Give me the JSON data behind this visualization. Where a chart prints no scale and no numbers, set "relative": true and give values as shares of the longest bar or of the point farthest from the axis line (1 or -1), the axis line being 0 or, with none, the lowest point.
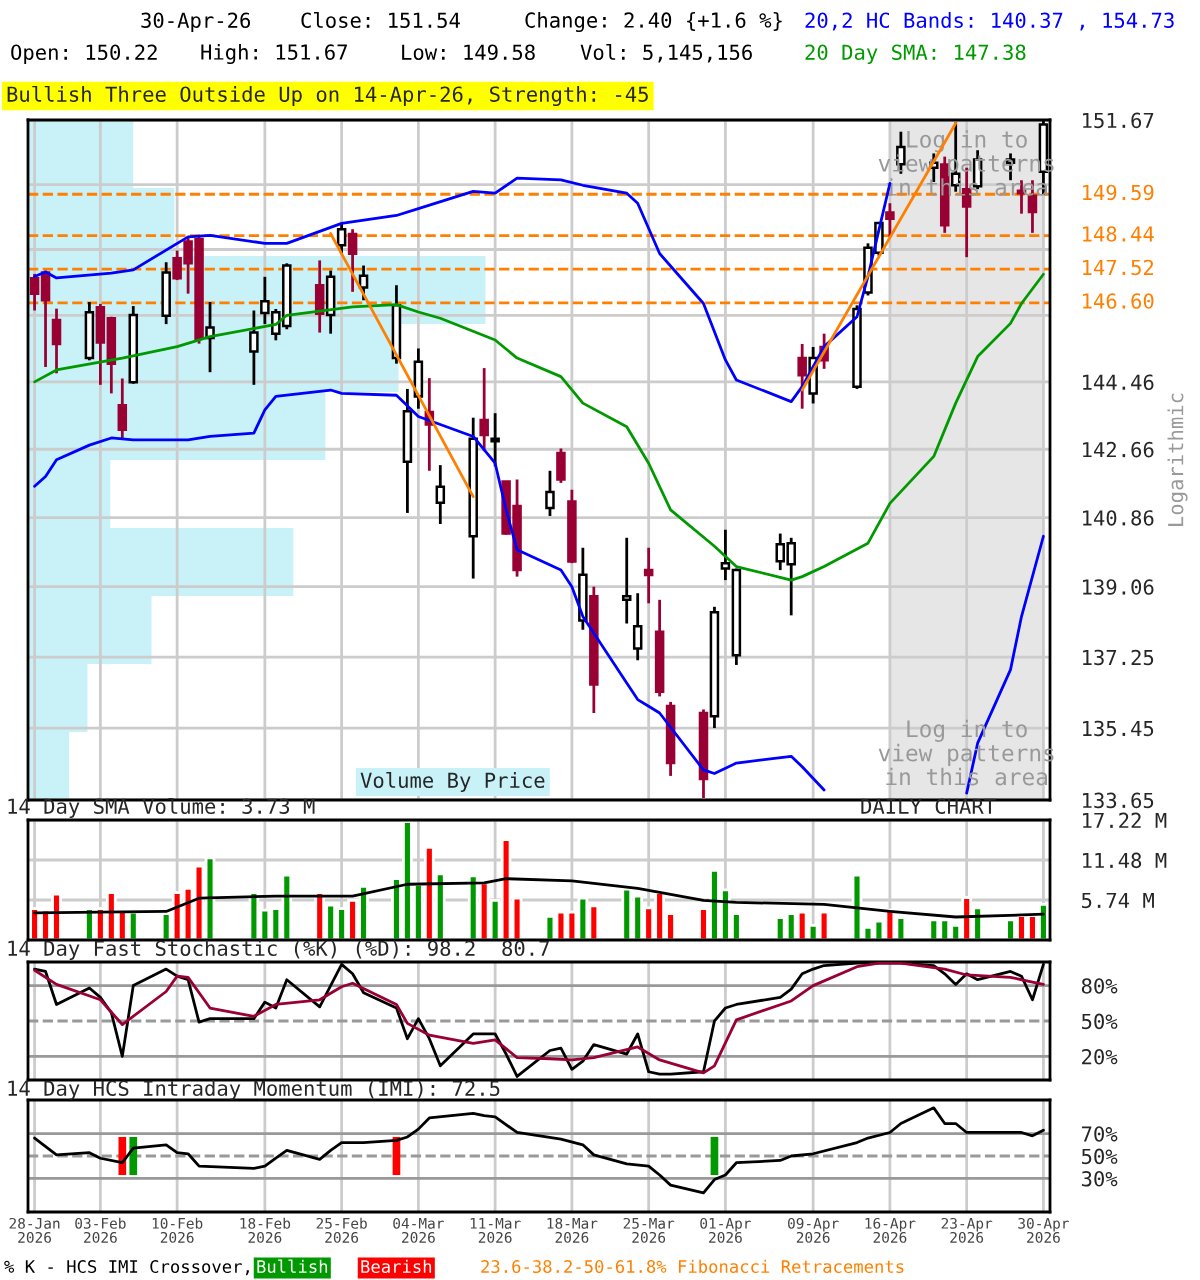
{
  "chart_data": [
    {
      "type": "candlestick",
      "title": "Bullish Three Outside Up on 14-Apr-26, Strength: -45",
      "ylabel": "Logarithmic",
      "annotations": [
        "30-Apr-26",
        "Close: 151.54",
        "Change: 2.40 {+1.6 %}",
        "Open: 150.22",
        "High: 151.67",
        "Low: 149.58",
        "Vol: 5,145,156",
        "20,2 HC Bands: 140.37 , 154.73",
        "20 Day SMA: 147.38",
        "Log in to\nview patterns\nin this area"
      ],
      "x": [
        "2026-01-28",
        "2026-01-29",
        "2026-01-30",
        "2026-02-02",
        "2026-02-03",
        "2026-02-04",
        "2026-02-05",
        "2026-02-06",
        "2026-02-09",
        "2026-02-10",
        "2026-02-11",
        "2026-02-12",
        "2026-02-13",
        "2026-02-17",
        "2026-02-18",
        "2026-02-19",
        "2026-02-20",
        "2026-02-23",
        "2026-02-24",
        "2026-02-25",
        "2026-02-26",
        "2026-02-27",
        "2026-03-02",
        "2026-03-03",
        "2026-03-04",
        "2026-03-05",
        "2026-03-06",
        "2026-03-09",
        "2026-03-10",
        "2026-03-11",
        "2026-03-12",
        "2026-03-13",
        "2026-03-16",
        "2026-03-17",
        "2026-03-18",
        "2026-03-19",
        "2026-03-20",
        "2026-03-23",
        "2026-03-24",
        "2026-03-25",
        "2026-03-26",
        "2026-03-27",
        "2026-03-30",
        "2026-03-31",
        "2026-04-01",
        "2026-04-02",
        "2026-04-06",
        "2026-04-07",
        "2026-04-08",
        "2026-04-09",
        "2026-04-10",
        "2026-04-13",
        "2026-04-14",
        "2026-04-15",
        "2026-04-16",
        "2026-04-17",
        "2026-04-20",
        "2026-04-21",
        "2026-04-22",
        "2026-04-23",
        "2026-04-24",
        "2026-04-27",
        "2026-04-28",
        "2026-04-29",
        "2026-04-30"
      ],
      "ohlc": [
        [
          147.27,
          147.39,
          146.39,
          146.85
        ],
        [
          147.43,
          147.48,
          144.86,
          146.67
        ],
        [
          146.13,
          146.44,
          144.69,
          145.48
        ],
        [
          145.1,
          146.62,
          145.04,
          146.34
        ],
        [
          146.48,
          146.57,
          144.38,
          145.52
        ],
        [
          146.18,
          146.22,
          144.15,
          144.95
        ],
        [
          143.83,
          144.55,
          142.91,
          143.18
        ],
        [
          144.45,
          146.51,
          144.41,
          146.27
        ],
        [
          146.25,
          147.71,
          146.02,
          147.43
        ],
        [
          147.82,
          148.03,
          147.22,
          147.27
        ],
        [
          148.28,
          148.41,
          146.85,
          147.68
        ],
        [
          148.35,
          148.41,
          145.49,
          145.62
        ],
        [
          145.64,
          146.62,
          144.72,
          145.93
        ],
        [
          145.28,
          146.39,
          144.38,
          145.79
        ],
        [
          146.32,
          147.31,
          146.02,
          146.64
        ],
        [
          145.76,
          146.43,
          145.58,
          146.34
        ],
        [
          145.97,
          147.68,
          145.88,
          147.62
        ],
        [
          147.08,
          147.76,
          145.79,
          146.3
        ],
        [
          146.27,
          147.48,
          145.76,
          147.31
        ],
        [
          148.18,
          148.79,
          147.94,
          148.62
        ],
        [
          148.49,
          148.62,
          146.9,
          147.94
        ],
        [
          147.02,
          147.62,
          146.67,
          147.34
        ],
        [
          145.1,
          147.08,
          144.95,
          146.53
        ],
        [
          142.33,
          144.27,
          140.98,
          143.67
        ],
        [
          144.07,
          145.36,
          143.74,
          145.0
        ],
        [
          143.65,
          144.56,
          142.09,
          143.32
        ],
        [
          141.25,
          142.24,
          140.69,
          141.67
        ],
        [
          140.37,
          143.5,
          139.27,
          142.94
        ],
        [
          143.44,
          144.83,
          142.61,
          143.04
        ],
        [
          142.87,
          143.62,
          142.21,
          142.94
        ],
        [
          141.81,
          141.81,
          140.41,
          140.44
        ],
        [
          141.16,
          141.86,
          139.32,
          139.49
        ],
        [
          141.11,
          142.09,
          140.9,
          141.53
        ],
        [
          142.56,
          142.68,
          141.77,
          141.86
        ],
        [
          141.28,
          141.59,
          139.67,
          139.71
        ],
        [
          138.19,
          140.07,
          137.95,
          139.37
        ],
        [
          138.81,
          139.06,
          135.83,
          136.55
        ],
        [
          138.72,
          140.33,
          138.11,
          138.81
        ],
        [
          137.47,
          138.89,
          137.17,
          138.04
        ],
        [
          139.49,
          140.07,
          138.63,
          139.36
        ],
        [
          137.9,
          138.72,
          136.25,
          136.37
        ],
        [
          136.01,
          136.11,
          134.25,
          134.57
        ],
        [
          135.83,
          135.92,
          133.7,
          134.17
        ],
        [
          135.75,
          138.54,
          135.45,
          138.4
        ],
        [
          139.53,
          140.54,
          139.23,
          139.67
        ],
        [
          137.3,
          139.53,
          137.05,
          139.49
        ],
        [
          139.72,
          140.44,
          139.49,
          140.16
        ],
        [
          139.64,
          140.33,
          138.32,
          140.19
        ],
        [
          145.1,
          145.48,
          143.74,
          144.64
        ],
        [
          144.15,
          145.4,
          143.88,
          145.1
        ],
        [
          145.4,
          145.76,
          144.81,
          145.04
        ],
        [
          144.33,
          146.53,
          144.27,
          146.43
        ],
        [
          146.88,
          148.23,
          146.8,
          148.11
        ],
        [
          147.97,
          148.82,
          147.89,
          148.79
        ],
        [
          149.08,
          149.34,
          148.41,
          148.91
        ],
        [
          150.43,
          151.34,
          150.16,
          150.91
        ],
        [
          150.33,
          150.73,
          149.93,
          150.47
        ],
        [
          150.42,
          150.64,
          148.52,
          148.73
        ],
        [
          149.84,
          151.61,
          149.66,
          150.16
        ],
        [
          149.73,
          150.33,
          147.85,
          149.25
        ],
        [
          149.81,
          150.82,
          149.73,
          150.56
        ],
        [
          150.47,
          150.73,
          149.98,
          150.56
        ],
        [
          149.69,
          149.98,
          149.05,
          149.62
        ],
        [
          149.55,
          149.98,
          148.52,
          149.1
        ],
        [
          150.22,
          151.67,
          149.58,
          151.54
        ]
      ],
      "colors": [
        "#990033",
        "#990033",
        "#990033",
        "#ffffff",
        "#990033",
        "#990033",
        "#990033",
        "#ffffff",
        "#ffffff",
        "#990033",
        "#990033",
        "#990033",
        "#ffffff",
        "#ffffff",
        "#ffffff",
        "#ffffff",
        "#ffffff",
        "#990033",
        "#ffffff",
        "#ffffff",
        "#990033",
        "#ffffff",
        "#ffffff",
        "#ffffff",
        "#ffffff",
        "#990033",
        "#ffffff",
        "#ffffff",
        "#990033",
        "#ffffff",
        "#990033",
        "#990033",
        "#ffffff",
        "#990033",
        "#990033",
        "#ffffff",
        "#990033",
        "#ffffff",
        "#ffffff",
        "#990033",
        "#990033",
        "#990033",
        "#990033",
        "#ffffff",
        "#ffffff",
        "#ffffff",
        "#ffffff",
        "#ffffff",
        "#990033",
        "#ffffff",
        "#990033",
        "#ffffff",
        "#ffffff",
        "#ffffff",
        "#990033",
        "#ffffff",
        "#ffffff",
        "#990033",
        "#ffffff",
        "#990033",
        "#ffffff",
        "#ffffff",
        "#990033",
        "#990033",
        "#ffffff"
      ],
      "series": [
        {
          "type": "line",
          "color": "#0000ff",
          "x": [
            "2026-01-28",
            "2026-01-29",
            "2026-01-30",
            "2026-02-04",
            "2026-02-06",
            "2026-02-11",
            "2026-02-13",
            "2026-02-18",
            "2026-02-20",
            "2026-02-25",
            "2026-03-02",
            "2026-03-04",
            "2026-03-09",
            "2026-03-11",
            "2026-03-13",
            "2026-03-17",
            "2026-03-19",
            "2026-03-23",
            "2026-03-24",
            "2026-03-26",
            "2026-03-30",
            "2026-04-01",
            "2026-04-02",
            "2026-04-07",
            "2026-04-08",
            "2026-04-10",
            "2026-04-13",
            "2026-04-14",
            "2026-04-15",
            "2026-04-16"
          ],
          "values": [
            147.32,
            147.44,
            147.28,
            147.41,
            147.5,
            148.41,
            148.45,
            148.23,
            148.23,
            148.78,
            149.0,
            149.19,
            149.67,
            149.62,
            150.04,
            149.99,
            149.84,
            149.62,
            149.34,
            147.95,
            146.58,
            145.05,
            144.51,
            143.93,
            144.33,
            145.41,
            146.22,
            147.32,
            148.6,
            149.89
          ]
        },
        {
          "type": "line",
          "color": "#0000ff",
          "x": [
            "2026-01-28",
            "2026-01-29",
            "2026-01-30",
            "2026-02-02",
            "2026-02-04",
            "2026-02-06",
            "2026-02-11",
            "2026-02-13",
            "2026-02-17",
            "2026-02-18",
            "2026-02-19",
            "2026-02-24",
            "2026-02-25",
            "2026-03-02",
            "2026-03-04",
            "2026-03-09",
            "2026-03-11",
            "2026-03-12",
            "2026-03-13",
            "2026-03-17",
            "2026-03-18",
            "2026-03-19",
            "2026-03-23",
            "2026-03-24",
            "2026-03-25",
            "2026-03-26",
            "2026-03-30",
            "2026-03-31",
            "2026-04-02",
            "2026-04-07",
            "2026-04-08",
            "2026-04-10",
            "2026-04-17",
            "2026-04-23",
            "2026-04-24",
            "2026-04-27",
            "2026-04-28",
            "2026-04-30"
          ],
          "values": [
            141.68,
            141.94,
            142.38,
            142.77,
            142.96,
            142.91,
            142.91,
            143.0,
            143.09,
            143.71,
            144.07,
            144.24,
            144.15,
            144.1,
            143.53,
            143.0,
            142.29,
            141.06,
            140.02,
            139.49,
            139.06,
            138.29,
            136.59,
            136.17,
            136.0,
            135.83,
            134.4,
            134.31,
            134.57,
            134.74,
            134.48,
            133.9,
            null,
            133.82,
            135.07,
            136.93,
            138.29,
            140.37
          ]
        },
        {
          "type": "line",
          "color": "#009900",
          "x": [
            "2026-01-28",
            "2026-01-30",
            "2026-02-05",
            "2026-02-10",
            "2026-02-13",
            "2026-02-19",
            "2026-02-20",
            "2026-02-26",
            "2026-03-02",
            "2026-03-04",
            "2026-03-06",
            "2026-03-11",
            "2026-03-13",
            "2026-03-17",
            "2026-03-19",
            "2026-03-23",
            "2026-03-25",
            "2026-03-27",
            "2026-03-31",
            "2026-04-02",
            "2026-04-07",
            "2026-04-08",
            "2026-04-10",
            "2026-04-14",
            "2026-04-16",
            "2026-04-20",
            "2026-04-22",
            "2026-04-24",
            "2026-04-27",
            "2026-04-28",
            "2026-04-30"
          ],
          "values": [
            144.46,
            144.78,
            145.1,
            145.41,
            145.68,
            146.01,
            146.26,
            146.49,
            146.55,
            146.35,
            146.18,
            145.59,
            145.1,
            144.6,
            143.89,
            143.26,
            142.29,
            141.06,
            140.11,
            139.58,
            139.23,
            139.32,
            139.58,
            140.19,
            141.23,
            142.47,
            143.89,
            145.14,
            146.04,
            146.58,
            147.38
          ]
        },
        {
          "type": "line",
          "color": "#ff8000",
          "x": [
            "2026-02-24",
            "2026-03-09"
          ],
          "values": [
            148.5,
            141.41
          ]
        },
        {
          "type": "line",
          "color": "#ff8000",
          "x": [
            "2026-04-08",
            "2026-04-22"
          ],
          "values": [
            144.24,
            151.58
          ]
        }
      ],
      "log": true,
      "ylim": [
        133.65,
        151.67
      ],
      "yticks": [
        133.65,
        135.45,
        137.25,
        139.06,
        140.86,
        142.66,
        144.46,
        {
          "value": 146.26,
          "label": null
        },
        {
          "value": 148.06,
          "label": null
        },
        {
          "value": 149.86,
          "label": null
        },
        151.67
      ],
      "xlim": [
        "2026-01-28",
        "2026-04-30"
      ],
      "xticks": [
        {
          "value": "2026-01-28",
          "label": null
        },
        {
          "value": "2026-02-03",
          "label": null
        },
        {
          "value": "2026-02-10",
          "label": null
        },
        {
          "value": "2026-02-18",
          "label": null
        },
        {
          "value": "2026-02-25",
          "label": null
        },
        {
          "value": "2026-03-04",
          "label": null
        },
        {
          "value": "2026-03-11",
          "label": null
        },
        {
          "value": "2026-03-18",
          "label": null
        },
        {
          "value": "2026-03-25",
          "label": null
        },
        {
          "value": "2026-04-01",
          "label": null
        },
        {
          "value": "2026-04-09",
          "label": null
        },
        {
          "value": "2026-04-16",
          "label": null
        },
        {
          "value": "2026-04-23",
          "label": null
        },
        {
          "value": "2026-04-30",
          "label": null
        }
      ],
      "tick_labels": "y",
      "grid": true,
      "ref_lines": [
        {
          "axis": "y",
          "value": 149.59,
          "label": "149.59",
          "color": "#ff8000",
          "line_style": "dashed"
        },
        {
          "axis": "y",
          "value": 148.44,
          "label": "148.44",
          "color": "#ff8000",
          "line_style": "dashed"
        },
        {
          "axis": "y",
          "value": 147.52,
          "label": "147.52",
          "color": "#ff8000",
          "line_style": "dashed"
        },
        {
          "axis": "y",
          "value": 146.6,
          "label": "146.60",
          "color": "#ff8000",
          "line_style": "dashed"
        }
      ],
      "bands": [
        {
          "axis": "x",
          "from": "2026-04-16",
          "to": "2026-04-30",
          "label": "Log in to\nview patterns\nin this area",
          "color": "#e6e6e6"
        }
      ]
    },
    {
      "type": "bar",
      "orientation": "horizontal",
      "relative": true,
      "title": "Volume By Price",
      "tick_labels": false,
      "categories": [
        null,
        null,
        null,
        null,
        null,
        null,
        null,
        null,
        null,
        null
      ],
      "values": [
        0.23,
        0.32,
        1,
        0.81,
        0.65,
        0.18,
        0.58,
        0.27,
        0.13,
        0.09
      ],
      "color": "#c8f2f8"
    },
    {
      "type": "bar",
      "title": "14 Day SMA Volume: 3.73 M",
      "annotations": [
        "DAILY CHART"
      ],
      "x": [
        "2026-01-28",
        "2026-01-29",
        "2026-01-30",
        "2026-02-02",
        "2026-02-03",
        "2026-02-04",
        "2026-02-05",
        "2026-02-06",
        "2026-02-09",
        "2026-02-10",
        "2026-02-11",
        "2026-02-12",
        "2026-02-13",
        "2026-02-17",
        "2026-02-18",
        "2026-02-19",
        "2026-02-20",
        "2026-02-23",
        "2026-02-24",
        "2026-02-25",
        "2026-02-26",
        "2026-02-27",
        "2026-03-02",
        "2026-03-03",
        "2026-03-04",
        "2026-03-05",
        "2026-03-06",
        "2026-03-09",
        "2026-03-10",
        "2026-03-11",
        "2026-03-12",
        "2026-03-13",
        "2026-03-16",
        "2026-03-17",
        "2026-03-18",
        "2026-03-19",
        "2026-03-20",
        "2026-03-23",
        "2026-03-24",
        "2026-03-25",
        "2026-03-26",
        "2026-03-27",
        "2026-03-30",
        "2026-03-31",
        "2026-04-01",
        "2026-04-02",
        "2026-04-06",
        "2026-04-07",
        "2026-04-08",
        "2026-04-09",
        "2026-04-10",
        "2026-04-13",
        "2026-04-14",
        "2026-04-15",
        "2026-04-16",
        "2026-04-17",
        "2026-04-20",
        "2026-04-21",
        "2026-04-22",
        "2026-04-23",
        "2026-04-24",
        "2026-04-27",
        "2026-04-28",
        "2026-04-29",
        "2026-04-30"
      ],
      "series": [
        {
          "type": "bar",
          "values": [
            4.5,
            4.3,
            6.6,
            4.5,
            4.5,
            6.8,
            4.1,
            4.0,
            3.8,
            6.8,
            7.4,
            10.6,
            11.8,
            6.8,
            4.3,
            4.5,
            9.3,
            6.8,
            5.0,
            4.5,
            5.7,
            7.7,
            8.8,
            17.0,
            8.0,
            13.3,
            9.5,
            9.2,
            8.2,
            5.7,
            14.4,
            6.0,
            3.4,
            4.0,
            4.0,
            6.0,
            4.9,
            7.3,
            6.3,
            4.6,
            6.8,
            3.8,
            4.5,
            10.0,
            7.2,
            3.8,
            3.2,
            3.8,
            4.0,
            2.1,
            4.0,
            9.3,
            1.8,
            2.7,
            4.3,
            3.2,
            2.9,
            2.9,
            2.1,
            6.1,
            4.6,
            2.9,
            3.5,
            3.5,
            5.1
          ],
          "colors": [
            "#ff0000",
            "#ff0000",
            "#ff0000",
            "#009900",
            "#ff0000",
            "#ff0000",
            "#ff0000",
            "#009900",
            "#009900",
            "#ff0000",
            "#ff0000",
            "#ff0000",
            "#009900",
            "#009900",
            "#009900",
            "#009900",
            "#009900",
            "#ff0000",
            "#009900",
            "#009900",
            "#ff0000",
            "#009900",
            "#009900",
            "#009900",
            "#009900",
            "#ff0000",
            "#009900",
            "#009900",
            "#ff0000",
            "#009900",
            "#ff0000",
            "#ff0000",
            "#009900",
            "#ff0000",
            "#ff0000",
            "#009900",
            "#ff0000",
            "#009900",
            "#009900",
            "#ff0000",
            "#ff0000",
            "#ff0000",
            "#ff0000",
            "#009900",
            "#009900",
            "#009900",
            "#009900",
            "#009900",
            "#ff0000",
            "#009900",
            "#ff0000",
            "#009900",
            "#009900",
            "#009900",
            "#ff0000",
            "#009900",
            "#009900",
            "#009900",
            "#009900",
            "#ff0000",
            "#009900",
            "#009900",
            "#ff0000",
            "#ff0000",
            "#009900"
          ]
        },
        {
          "type": "line",
          "color": "#000000",
          "x": [
            "2026-01-28",
            "2026-02-09",
            "2026-02-12",
            "2026-02-19",
            "2026-02-26",
            "2026-03-03",
            "2026-03-10",
            "2026-03-12",
            "2026-03-18",
            "2026-03-24",
            "2026-03-30",
            "2026-04-02",
            "2026-04-10",
            "2026-04-16",
            "2026-04-22",
            "2026-04-30"
          ],
          "values": [
            3.9,
            4.1,
            6.0,
            6.3,
            6.3,
            8.0,
            8.2,
            8.8,
            8.5,
            7.4,
            5.7,
            5.4,
            5.1,
            4.1,
            3.3,
            3.7
          ]
        }
      ],
      "ylim": [
        0,
        17.22
      ],
      "yticks": [
        {
          "value": 5.74,
          "label": "5.74 M"
        },
        {
          "value": 11.48,
          "label": "11.48 M"
        },
        {
          "value": 17.22,
          "label": "17.22 M"
        }
      ],
      "xlim": [
        "2026-01-28",
        "2026-04-30"
      ],
      "xticks": [
        {
          "value": "2026-01-28",
          "label": null
        },
        {
          "value": "2026-02-03",
          "label": null
        },
        {
          "value": "2026-02-10",
          "label": null
        },
        {
          "value": "2026-02-18",
          "label": null
        },
        {
          "value": "2026-02-25",
          "label": null
        },
        {
          "value": "2026-03-04",
          "label": null
        },
        {
          "value": "2026-03-11",
          "label": null
        },
        {
          "value": "2026-03-18",
          "label": null
        },
        {
          "value": "2026-03-25",
          "label": null
        },
        {
          "value": "2026-04-01",
          "label": null
        },
        {
          "value": "2026-04-09",
          "label": null
        },
        {
          "value": "2026-04-16",
          "label": null
        },
        {
          "value": "2026-04-23",
          "label": null
        },
        {
          "value": "2026-04-30",
          "label": null
        }
      ],
      "tick_labels": "y",
      "grid": true
    },
    {
      "type": "line",
      "title": "14 Day Fast Stochastic (%K) (%D): 98.2  80.7",
      "x": [
        "2026-01-28",
        "2026-01-29",
        "2026-01-30",
        "2026-02-02",
        "2026-02-03",
        "2026-02-04",
        "2026-02-05",
        "2026-02-06",
        "2026-02-09",
        "2026-02-10",
        "2026-02-11",
        "2026-02-12",
        "2026-02-13",
        "2026-02-17",
        "2026-02-18",
        "2026-02-19",
        "2026-02-20",
        "2026-02-23",
        "2026-02-24",
        "2026-02-25",
        "2026-02-26",
        "2026-02-27",
        "2026-03-02",
        "2026-03-03",
        "2026-03-04",
        "2026-03-05",
        "2026-03-06",
        "2026-03-09",
        "2026-03-10",
        "2026-03-11",
        "2026-03-12",
        "2026-03-13",
        "2026-03-16",
        "2026-03-17",
        "2026-03-18",
        "2026-03-19",
        "2026-03-20",
        "2026-03-23",
        "2026-03-24",
        "2026-03-25",
        "2026-03-26",
        "2026-03-27",
        "2026-03-30",
        "2026-03-31",
        "2026-04-01",
        "2026-04-02",
        "2026-04-06",
        "2026-04-07",
        "2026-04-08",
        "2026-04-09",
        "2026-04-10",
        "2026-04-13",
        "2026-04-14",
        "2026-04-15",
        "2026-04-16",
        "2026-04-17",
        "2026-04-20",
        "2026-04-21",
        "2026-04-22",
        "2026-04-23",
        "2026-04-24",
        "2026-04-27",
        "2026-04-28",
        "2026-04-29",
        "2026-04-30"
      ],
      "series": [
        {
          "color": "#000000",
          "values": [
            94,
            92,
            64,
            78,
            70,
            57,
            20,
            80,
            94,
            88,
            85,
            49,
            52,
            52,
            66,
            61,
            85,
            62,
            80,
            98,
            90,
            74,
            61,
            35,
            52,
            35,
            12,
            39,
            39,
            39,
            22,
            3,
            25,
            27,
            9,
            16,
            30,
            22,
            39,
            7,
            5,
            5,
            7,
            50,
            61,
            64,
            70,
            77,
            90,
            94,
            97,
            99,
            99,
            99,
            99,
            99,
            97,
            90,
            81,
            90,
            85,
            92,
            88,
            68,
            98
          ]
        },
        {
          "color": "#990033",
          "x": [
            "2026-01-28",
            "2026-01-30",
            "2026-02-03",
            "2026-02-05",
            "2026-02-09",
            "2026-02-10",
            "2026-02-11",
            "2026-02-13",
            "2026-02-17",
            "2026-02-19",
            "2026-02-23",
            "2026-02-25",
            "2026-02-26",
            "2026-03-02",
            "2026-03-03",
            "2026-03-05",
            "2026-03-09",
            "2026-03-11",
            "2026-03-13",
            "2026-03-16",
            "2026-03-18",
            "2026-03-20",
            "2026-03-24",
            "2026-03-26",
            "2026-03-30",
            "2026-03-31",
            "2026-04-02",
            "2026-04-07",
            "2026-04-09",
            "2026-04-13",
            "2026-04-15",
            "2026-04-17",
            "2026-04-21",
            "2026-04-23",
            "2026-04-27",
            "2026-04-29",
            "2026-04-30"
          ],
          "values": [
            93,
            81,
            68,
            47,
            75,
            88,
            87,
            61,
            54,
            64,
            68,
            79,
            82,
            64,
            48,
            38,
            31,
            34,
            19,
            18,
            17,
            19,
            28,
            17,
            6,
            12,
            51,
            67,
            80,
            96,
            99,
            99,
            94,
            89,
            87,
            83,
            81
          ]
        }
      ],
      "ylim": [
        0,
        100
      ],
      "yticks": [
        {
          "value": 20,
          "label": "20%"
        },
        {
          "value": 50,
          "label": "50%"
        },
        {
          "value": 80,
          "label": "80%"
        }
      ],
      "xlim": [
        "2026-01-28",
        "2026-04-30"
      ],
      "xticks": [
        {
          "value": "2026-01-28",
          "label": null
        },
        {
          "value": "2026-02-03",
          "label": null
        },
        {
          "value": "2026-02-10",
          "label": null
        },
        {
          "value": "2026-02-18",
          "label": null
        },
        {
          "value": "2026-02-25",
          "label": null
        },
        {
          "value": "2026-03-04",
          "label": null
        },
        {
          "value": "2026-03-11",
          "label": null
        },
        {
          "value": "2026-03-18",
          "label": null
        },
        {
          "value": "2026-03-25",
          "label": null
        },
        {
          "value": "2026-04-01",
          "label": null
        },
        {
          "value": "2026-04-09",
          "label": null
        },
        {
          "value": "2026-04-16",
          "label": null
        },
        {
          "value": "2026-04-23",
          "label": null
        },
        {
          "value": "2026-04-30",
          "label": null
        }
      ],
      "tick_labels": "y",
      "grid": "x",
      "ref_lines": [
        {
          "axis": "y",
          "value": 80,
          "color": "#999999",
          "line_style": "solid"
        },
        {
          "axis": "y",
          "value": 50,
          "color": "#999999",
          "line_style": "dashed"
        },
        {
          "axis": "y",
          "value": 20,
          "color": "#999999",
          "line_style": "solid"
        }
      ]
    },
    {
      "type": "line",
      "title": "14 Day HCS Intraday Momentum (IMI): 72.5",
      "annotations": [
        "% K - HCS IMI Crossover,",
        "Bullish",
        "Bearish",
        "23.6-38.2-50-61.8% Fibonacci Retracements"
      ],
      "series": [
        {
          "color": "#000000",
          "x": [
            "2026-01-28",
            "2026-01-30",
            "2026-02-02",
            "2026-02-03",
            "2026-02-05",
            "2026-02-06",
            "2026-02-09",
            "2026-02-10",
            "2026-02-11",
            "2026-02-12",
            "2026-02-17",
            "2026-02-18",
            "2026-02-19",
            "2026-02-20",
            "2026-02-23",
            "2026-02-24",
            "2026-02-25",
            "2026-02-27",
            "2026-03-02",
            "2026-03-03",
            "2026-03-04",
            "2026-03-05",
            "2026-03-09",
            "2026-03-10",
            "2026-03-11",
            "2026-03-13",
            "2026-03-17",
            "2026-03-19",
            "2026-03-20",
            "2026-03-23",
            "2026-03-25",
            "2026-03-26",
            "2026-03-27",
            "2026-03-30",
            "2026-03-31",
            "2026-04-01",
            "2026-04-02",
            "2026-04-06",
            "2026-04-07",
            "2026-04-09",
            "2026-04-13",
            "2026-04-14",
            "2026-04-16",
            "2026-04-17",
            "2026-04-20",
            "2026-04-21",
            "2026-04-22",
            "2026-04-23",
            "2026-04-28",
            "2026-04-29",
            "2026-04-30"
          ],
          "values": [
            66,
            51,
            53,
            48,
            44,
            57,
            60,
            53,
            52,
            41,
            39,
            41,
            48,
            55,
            47,
            55,
            62,
            62,
            64,
            67,
            74,
            84,
            88,
            86,
            85,
            71,
            65,
            60,
            51,
            43,
            41,
            33,
            24,
            17,
            29,
            33,
            44,
            46,
            50,
            52,
            62,
            66,
            71,
            79,
            93,
            79,
            79,
            71,
            71,
            68,
            73
          ]
        }
      ],
      "ylim": [
        0,
        100
      ],
      "yticks": [
        {
          "value": 30,
          "label": "30%"
        },
        {
          "value": 50,
          "label": "50%"
        },
        {
          "value": 70,
          "label": "70%"
        }
      ],
      "xlim": [
        "2026-01-28",
        "2026-04-30"
      ],
      "xticks": [
        {
          "value": "2026-01-28",
          "label": "28-Jan\n2026"
        },
        {
          "value": "2026-02-03",
          "label": "03-Feb\n2026"
        },
        {
          "value": "2026-02-10",
          "label": "10-Feb\n2026"
        },
        {
          "value": "2026-02-18",
          "label": "18-Feb\n2026"
        },
        {
          "value": "2026-02-25",
          "label": "25-Feb\n2026"
        },
        {
          "value": "2026-03-04",
          "label": "04-Mar\n2026"
        },
        {
          "value": "2026-03-11",
          "label": "11-Mar\n2026"
        },
        {
          "value": "2026-03-18",
          "label": "18-Mar\n2026"
        },
        {
          "value": "2026-03-25",
          "label": "25-Mar\n2026"
        },
        {
          "value": "2026-04-01",
          "label": "01-Apr\n2026"
        },
        {
          "value": "2026-04-09",
          "label": "09-Apr\n2026"
        },
        {
          "value": "2026-04-16",
          "label": "16-Apr\n2026"
        },
        {
          "value": "2026-04-23",
          "label": "23-Apr\n2026"
        },
        {
          "value": "2026-04-30",
          "label": "30-Apr\n2026"
        }
      ],
      "grid": "x",
      "ref_lines": [
        {
          "axis": "y",
          "value": 70,
          "color": "#999999",
          "line_style": "solid"
        },
        {
          "axis": "y",
          "value": 50,
          "color": "#999999",
          "line_style": "dashed"
        },
        {
          "axis": "y",
          "value": 30,
          "color": "#999999",
          "line_style": "solid"
        }
      ],
      "bands": [
        {
          "axis": "x",
          "from": "2026-02-05",
          "to": "2026-02-05",
          "color": "#ff0000"
        },
        {
          "axis": "x",
          "from": "2026-02-06",
          "to": "2026-02-06",
          "color": "#009900"
        },
        {
          "axis": "x",
          "from": "2026-03-02",
          "to": "2026-03-02",
          "color": "#ff0000"
        },
        {
          "axis": "x",
          "from": "2026-03-31",
          "to": "2026-03-31",
          "color": "#009900"
        }
      ]
    }
  ]
}
